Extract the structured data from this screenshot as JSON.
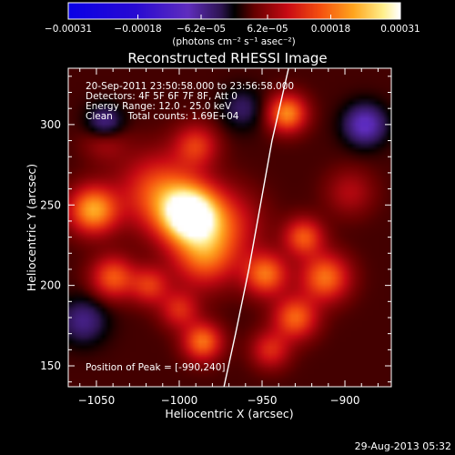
{
  "chart_data": {
    "type": "heatmap",
    "title": "Reconstructed RHESSI Image",
    "xlabel": "Heliocentric X (arcsec)",
    "ylabel": "Heliocentric Y (arcsec)",
    "xlim": [
      -1067,
      -872
    ],
    "ylim": [
      137,
      335
    ],
    "xticks": [
      {
        "value": -1050,
        "label": "−1050"
      },
      {
        "value": -1000,
        "label": "−1000"
      },
      {
        "value": -950,
        "label": "−950"
      },
      {
        "value": -900,
        "label": "−900"
      }
    ],
    "yticks": [
      {
        "value": 150,
        "label": "150"
      },
      {
        "value": 200,
        "label": "200"
      },
      {
        "value": 250,
        "label": "250"
      },
      {
        "value": 300,
        "label": "300"
      }
    ],
    "colorbar": {
      "range": [
        -0.00031,
        0.00031
      ],
      "ticks": [
        {
          "value": -0.00031,
          "label": "−0.00031"
        },
        {
          "value": -0.00018,
          "label": "−0.00018"
        },
        {
          "value": -6.2e-05,
          "label": "−6.2e−05"
        },
        {
          "value": 6.2e-05,
          "label": "6.2e−05"
        },
        {
          "value": 0.00018,
          "label": "0.00018"
        },
        {
          "value": 0.00031,
          "label": "0.00031"
        }
      ],
      "unit_label": "(photons cm⁻² s⁻¹ asec⁻²)"
    },
    "annotations": [
      "20-Sep-2011 23:50:58.000 to 23:56:58.000",
      "Detectors: 4F 5F 6F 7F 8F, Att 0",
      "Energy Range: 12.0 - 25.0 keV",
      "Clean     Total counts: 1.69E+04"
    ],
    "peak_label": "Position of Peak = [-990,240]",
    "peak": [
      -990,
      240
    ],
    "limb_curve": [
      [
        -934,
        335
      ],
      [
        -944,
        290
      ],
      [
        -951,
        250
      ],
      [
        -958,
        210
      ],
      [
        -966,
        170
      ],
      [
        -973,
        137
      ]
    ],
    "blobs": [
      {
        "x": -994,
        "y": 244,
        "amp": 0.00031,
        "sigma": 12
      },
      {
        "x": -1012,
        "y": 258,
        "amp": 0.00014,
        "sigma": 16
      },
      {
        "x": -973,
        "y": 238,
        "amp": 0.0001,
        "sigma": 15
      },
      {
        "x": -985,
        "y": 218,
        "amp": 0.00014,
        "sigma": 13
      },
      {
        "x": -1052,
        "y": 247,
        "amp": 0.0002,
        "sigma": 10
      },
      {
        "x": -1040,
        "y": 205,
        "amp": 0.00014,
        "sigma": 9
      },
      {
        "x": -1018,
        "y": 200,
        "amp": 0.00011,
        "sigma": 8
      },
      {
        "x": -1000,
        "y": 185,
        "amp": 0.0001,
        "sigma": 8
      },
      {
        "x": -986,
        "y": 165,
        "amp": 0.00016,
        "sigma": 8
      },
      {
        "x": -948,
        "y": 207,
        "amp": 0.00016,
        "sigma": 9
      },
      {
        "x": -925,
        "y": 230,
        "amp": 0.00014,
        "sigma": 8
      },
      {
        "x": -912,
        "y": 205,
        "amp": 0.00016,
        "sigma": 10
      },
      {
        "x": -930,
        "y": 180,
        "amp": 0.00015,
        "sigma": 9
      },
      {
        "x": -945,
        "y": 160,
        "amp": 0.0001,
        "sigma": 8
      },
      {
        "x": -935,
        "y": 307,
        "amp": 0.00018,
        "sigma": 8
      },
      {
        "x": -990,
        "y": 287,
        "amp": 0.00011,
        "sigma": 9
      },
      {
        "x": -1045,
        "y": 292,
        "amp": 8e-05,
        "sigma": 9
      },
      {
        "x": -897,
        "y": 258,
        "amp": 6e-05,
        "sigma": 10
      },
      {
        "x": -1045,
        "y": 300,
        "amp": -0.00012,
        "sigma": 8
      },
      {
        "x": -888,
        "y": 300,
        "amp": -0.00012,
        "sigma": 9
      },
      {
        "x": -1058,
        "y": 178,
        "amp": -8e-05,
        "sigma": 10
      },
      {
        "x": -962,
        "y": 310,
        "amp": -6e-05,
        "sigma": 9
      }
    ]
  },
  "footer_stamp": "29-Aug-2013 05:32",
  "colors": {
    "background": "#000000",
    "foreground": "#ffffff",
    "limb": "#ffffff"
  }
}
